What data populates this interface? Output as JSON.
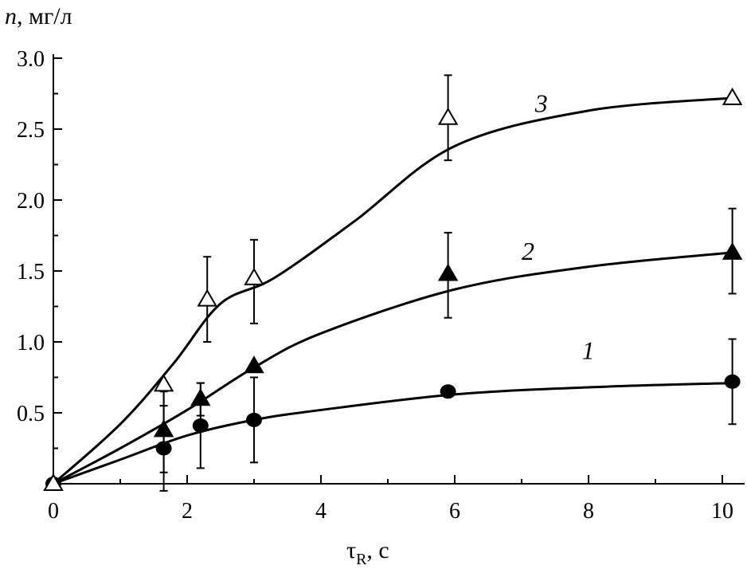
{
  "chart_data": {
    "type": "line",
    "ylabel_var": "n",
    "ylabel_unit": ", мг/л",
    "xlabel_var": "τ",
    "xlabel_sub": "R",
    "xlabel_unit": ", с",
    "xlim": [
      0,
      10.3
    ],
    "ylim": [
      0,
      3.0
    ],
    "xticks": [
      0,
      2,
      4,
      6,
      8,
      10
    ],
    "xtick_labels": [
      "0",
      "2",
      "4",
      "6",
      "8",
      "10"
    ],
    "yticks": [
      0.5,
      1.0,
      1.5,
      2.0,
      2.5,
      3.0
    ],
    "ytick_labels": [
      "0.5",
      "1.0",
      "1.5",
      "2.0",
      "2.5",
      "3.0"
    ],
    "series": [
      {
        "name": "1",
        "marker": "circle-filled",
        "x": [
          0,
          1.65,
          2.2,
          3.0,
          5.9,
          10.15
        ],
        "y": [
          0,
          0.25,
          0.41,
          0.45,
          0.65,
          0.72
        ],
        "err_low": [
          null,
          -0.05,
          0.11,
          0.15,
          null,
          0.42
        ],
        "err_high": [
          null,
          0.55,
          0.71,
          0.75,
          null,
          1.02
        ],
        "curve_x": [
          0,
          1,
          2,
          3,
          4,
          6,
          8,
          10.15
        ],
        "curve_y": [
          0,
          0.17,
          0.34,
          0.45,
          0.52,
          0.63,
          0.68,
          0.71
        ],
        "label_x": 7.9,
        "label_y": 0.88
      },
      {
        "name": "2",
        "marker": "triangle-filled",
        "x": [
          0,
          1.65,
          2.2,
          3.0,
          5.9,
          10.15
        ],
        "y": [
          0,
          0.38,
          0.6,
          0.83,
          1.48,
          1.63
        ],
        "err_low": [
          null,
          0.08,
          0.48,
          null,
          1.17,
          1.34
        ],
        "err_high": [
          null,
          0.65,
          0.71,
          null,
          1.77,
          1.94
        ],
        "curve_x": [
          0,
          1,
          2,
          3,
          4,
          6,
          8,
          10.15
        ],
        "curve_y": [
          0,
          0.25,
          0.52,
          0.82,
          1.06,
          1.37,
          1.53,
          1.63
        ],
        "label_x": 7.0,
        "label_y": 1.58
      },
      {
        "name": "3",
        "marker": "triangle-open",
        "x": [
          0,
          1.65,
          2.3,
          3.0,
          5.9,
          10.15
        ],
        "y": [
          0,
          0.7,
          1.3,
          1.45,
          2.58,
          2.72
        ],
        "err_low": [
          null,
          0.55,
          1.0,
          1.13,
          2.28,
          2.7
        ],
        "err_high": [
          null,
          0.7,
          1.6,
          1.72,
          2.88,
          2.73
        ],
        "curve_x": [
          0,
          1,
          1.8,
          2.5,
          3.3,
          4.5,
          6,
          8,
          10.15
        ],
        "curve_y": [
          0,
          0.42,
          0.85,
          1.27,
          1.45,
          1.85,
          2.38,
          2.63,
          2.72
        ],
        "label_x": 7.2,
        "label_y": 2.62
      }
    ]
  }
}
